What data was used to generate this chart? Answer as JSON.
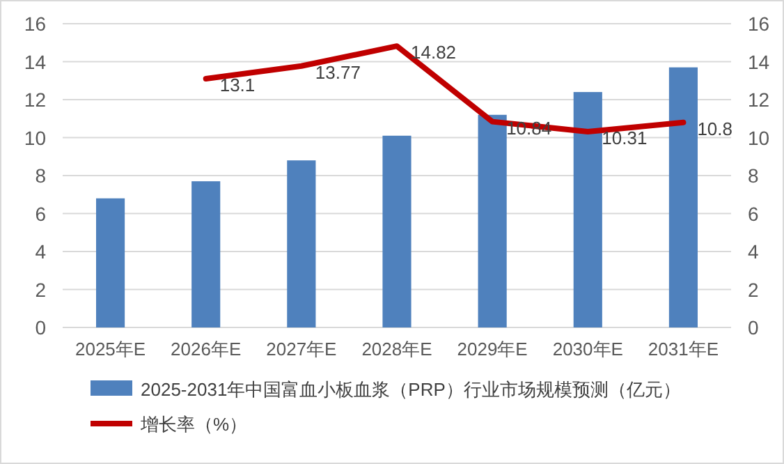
{
  "chart_data": {
    "type": "bar",
    "categories": [
      "2025年E",
      "2026年E",
      "2027年E",
      "2028年E",
      "2029年E",
      "2030年E",
      "2031年E"
    ],
    "series": [
      {
        "name": "2025-2031年中国富血小板血浆（PRP）行业市场规模预测（亿元）",
        "color": "#4f81bd",
        "values": [
          6.8,
          7.7,
          8.8,
          10.1,
          11.2,
          12.4,
          13.7
        ]
      },
      {
        "name": "增长率（%）",
        "type": "line",
        "axis": "y2",
        "color": "#c00000",
        "values": [
          null,
          13.1,
          13.77,
          14.82,
          10.84,
          10.31,
          10.8
        ],
        "value_labels": [
          null,
          "13.1",
          "13.77",
          "14.82",
          "10.84",
          "10.31",
          "10.8"
        ]
      }
    ],
    "ylim": [
      0,
      16
    ],
    "yticks": [
      0,
      2,
      4,
      6,
      8,
      10,
      12,
      14,
      16
    ],
    "y2lim": [
      0,
      16
    ],
    "y2ticks": [
      0,
      2,
      4,
      6,
      8,
      10,
      12,
      14,
      16
    ],
    "grid": "y",
    "legend": "bottom"
  }
}
